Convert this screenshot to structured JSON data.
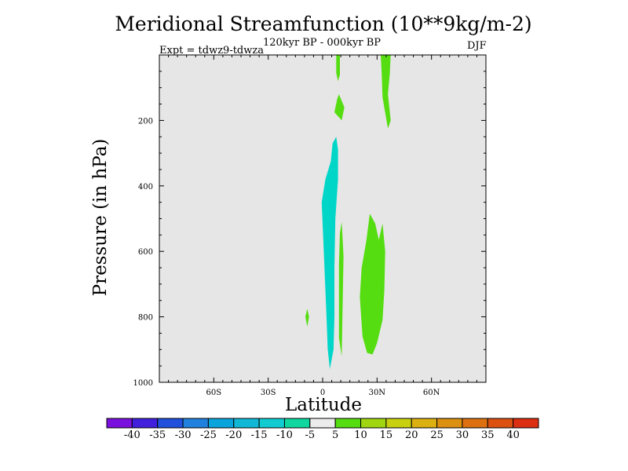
{
  "chart_data": {
    "type": "contour",
    "title": "Meridional Streamfunction (10**9kg/m-2)",
    "subtitle": "120kyr BP - 000kyr BP",
    "left_label": "Expt = tdwz9-tdwza",
    "right_label": "DJF",
    "xlabel": "Latitude",
    "ylabel": "Pressure (in hPa)",
    "xlim": [
      -90,
      90
    ],
    "ylim": [
      1000,
      0
    ],
    "y_inverted": true,
    "xticks": [
      {
        "value": -60,
        "label": "60S"
      },
      {
        "value": -30,
        "label": "30S"
      },
      {
        "value": 0,
        "label": "0"
      },
      {
        "value": 30,
        "label": "30N"
      },
      {
        "value": 60,
        "label": "60N"
      }
    ],
    "yticks": [
      {
        "value": 200,
        "label": "200"
      },
      {
        "value": 400,
        "label": "400"
      },
      {
        "value": 600,
        "label": "600"
      },
      {
        "value": 800,
        "label": "800"
      },
      {
        "value": 1000,
        "label": "1000"
      }
    ],
    "background_color": "#e6e6e6",
    "regions": [
      {
        "level": -7.5,
        "color": "#00d6c8",
        "points": [
          [
            4.5,
            325
          ],
          [
            5.5,
            270
          ],
          [
            7.5,
            250
          ],
          [
            8.5,
            290
          ],
          [
            8.5,
            380
          ],
          [
            7,
            500
          ],
          [
            6.5,
            650
          ],
          [
            6.5,
            800
          ],
          [
            6,
            900
          ],
          [
            4,
            960
          ],
          [
            2.8,
            900
          ],
          [
            2,
            780
          ],
          [
            0.8,
            620
          ],
          [
            -0.5,
            450
          ],
          [
            1.5,
            380
          ]
        ]
      },
      {
        "level": 7.5,
        "color": "#55dd11",
        "points": [
          [
            7.5,
            0
          ],
          [
            9.5,
            0
          ],
          [
            9.5,
            60
          ],
          [
            8.5,
            80
          ],
          [
            7.5,
            55
          ]
        ]
      },
      {
        "level": 7.5,
        "color": "#55dd11",
        "points": [
          [
            9,
            120
          ],
          [
            12,
            160
          ],
          [
            10.5,
            200
          ],
          [
            6.5,
            175
          ],
          [
            8,
            135
          ]
        ]
      },
      {
        "level": 7.5,
        "color": "#55dd11",
        "points": [
          [
            32,
            0
          ],
          [
            37.5,
            0
          ],
          [
            37,
            60
          ],
          [
            36,
            120
          ],
          [
            37.5,
            200
          ],
          [
            36,
            225
          ],
          [
            33,
            130
          ],
          [
            32.5,
            50
          ]
        ]
      },
      {
        "level": 7.5,
        "color": "#55dd11",
        "points": [
          [
            10.5,
            510
          ],
          [
            11.5,
            615
          ],
          [
            10.5,
            920
          ],
          [
            9,
            865
          ],
          [
            9,
            640
          ],
          [
            9.5,
            545
          ]
        ]
      },
      {
        "level": 7.5,
        "color": "#55dd11",
        "points": [
          [
            21.5,
            650
          ],
          [
            24,
            570
          ],
          [
            26,
            485
          ],
          [
            29,
            515
          ],
          [
            31,
            565
          ],
          [
            33,
            515
          ],
          [
            34.5,
            600
          ],
          [
            34,
            720
          ],
          [
            33,
            810
          ],
          [
            30,
            880
          ],
          [
            27.5,
            915
          ],
          [
            24.5,
            910
          ],
          [
            22,
            860
          ],
          [
            20.5,
            740
          ]
        ]
      },
      {
        "level": 7.5,
        "color": "#55dd11",
        "points": [
          [
            -8.5,
            775
          ],
          [
            -7.5,
            800
          ],
          [
            -8.5,
            830
          ],
          [
            -9.5,
            800
          ]
        ]
      }
    ],
    "colorbar": {
      "levels": [
        -40,
        -35,
        -30,
        -25,
        -20,
        -15,
        -10,
        -5,
        5,
        10,
        15,
        20,
        25,
        30,
        35,
        40
      ],
      "colors": [
        "#7a10dd",
        "#4020dd",
        "#2050dc",
        "#2080de",
        "#0aa4dc",
        "#10b8d6",
        "#10ccd0",
        "#10d6a0",
        "#ececec",
        "#55dd11",
        "#a0d610",
        "#c8d010",
        "#dcb010",
        "#dc9010",
        "#dc7010",
        "#dc5010",
        "#dc2e10"
      ]
    }
  }
}
